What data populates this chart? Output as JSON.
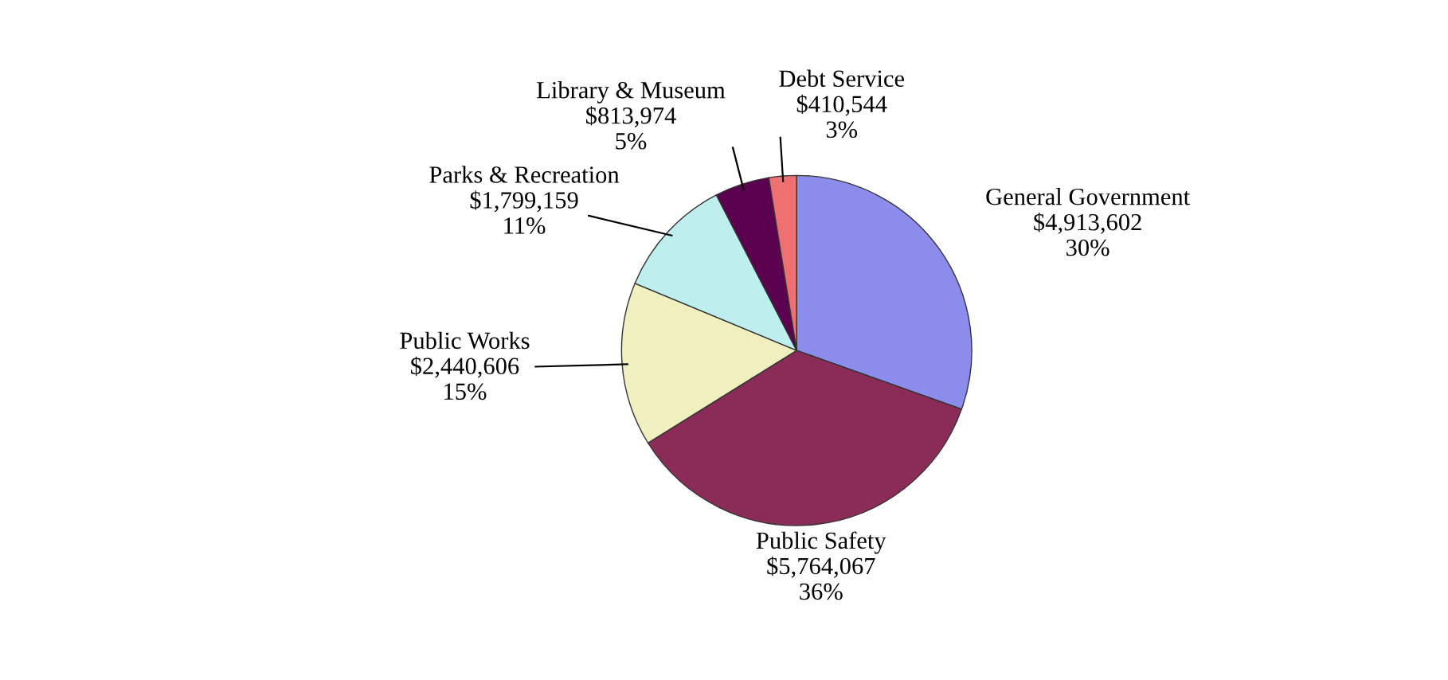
{
  "chart_data": {
    "type": "pie",
    "categories": [
      "General Government",
      "Public Safety",
      "Public Works",
      "Parks & Recreation",
      "Library & Museum",
      "Debt Service"
    ],
    "values": [
      4913602,
      5764067,
      2440606,
      1799159,
      813974,
      410544
    ],
    "value_labels": [
      "$4,913,602\n30%",
      "$5,764,067\n36%",
      "$2,440,606\n15%",
      "$1,799,159\n11%",
      "$813,974\n5%",
      "$410,544\n3%"
    ],
    "colors": [
      "#8c8ced",
      "#8b2b57",
      "#efefc0",
      "#bfeeee",
      "#5c0050",
      "#ef7070"
    ],
    "legend": false
  }
}
